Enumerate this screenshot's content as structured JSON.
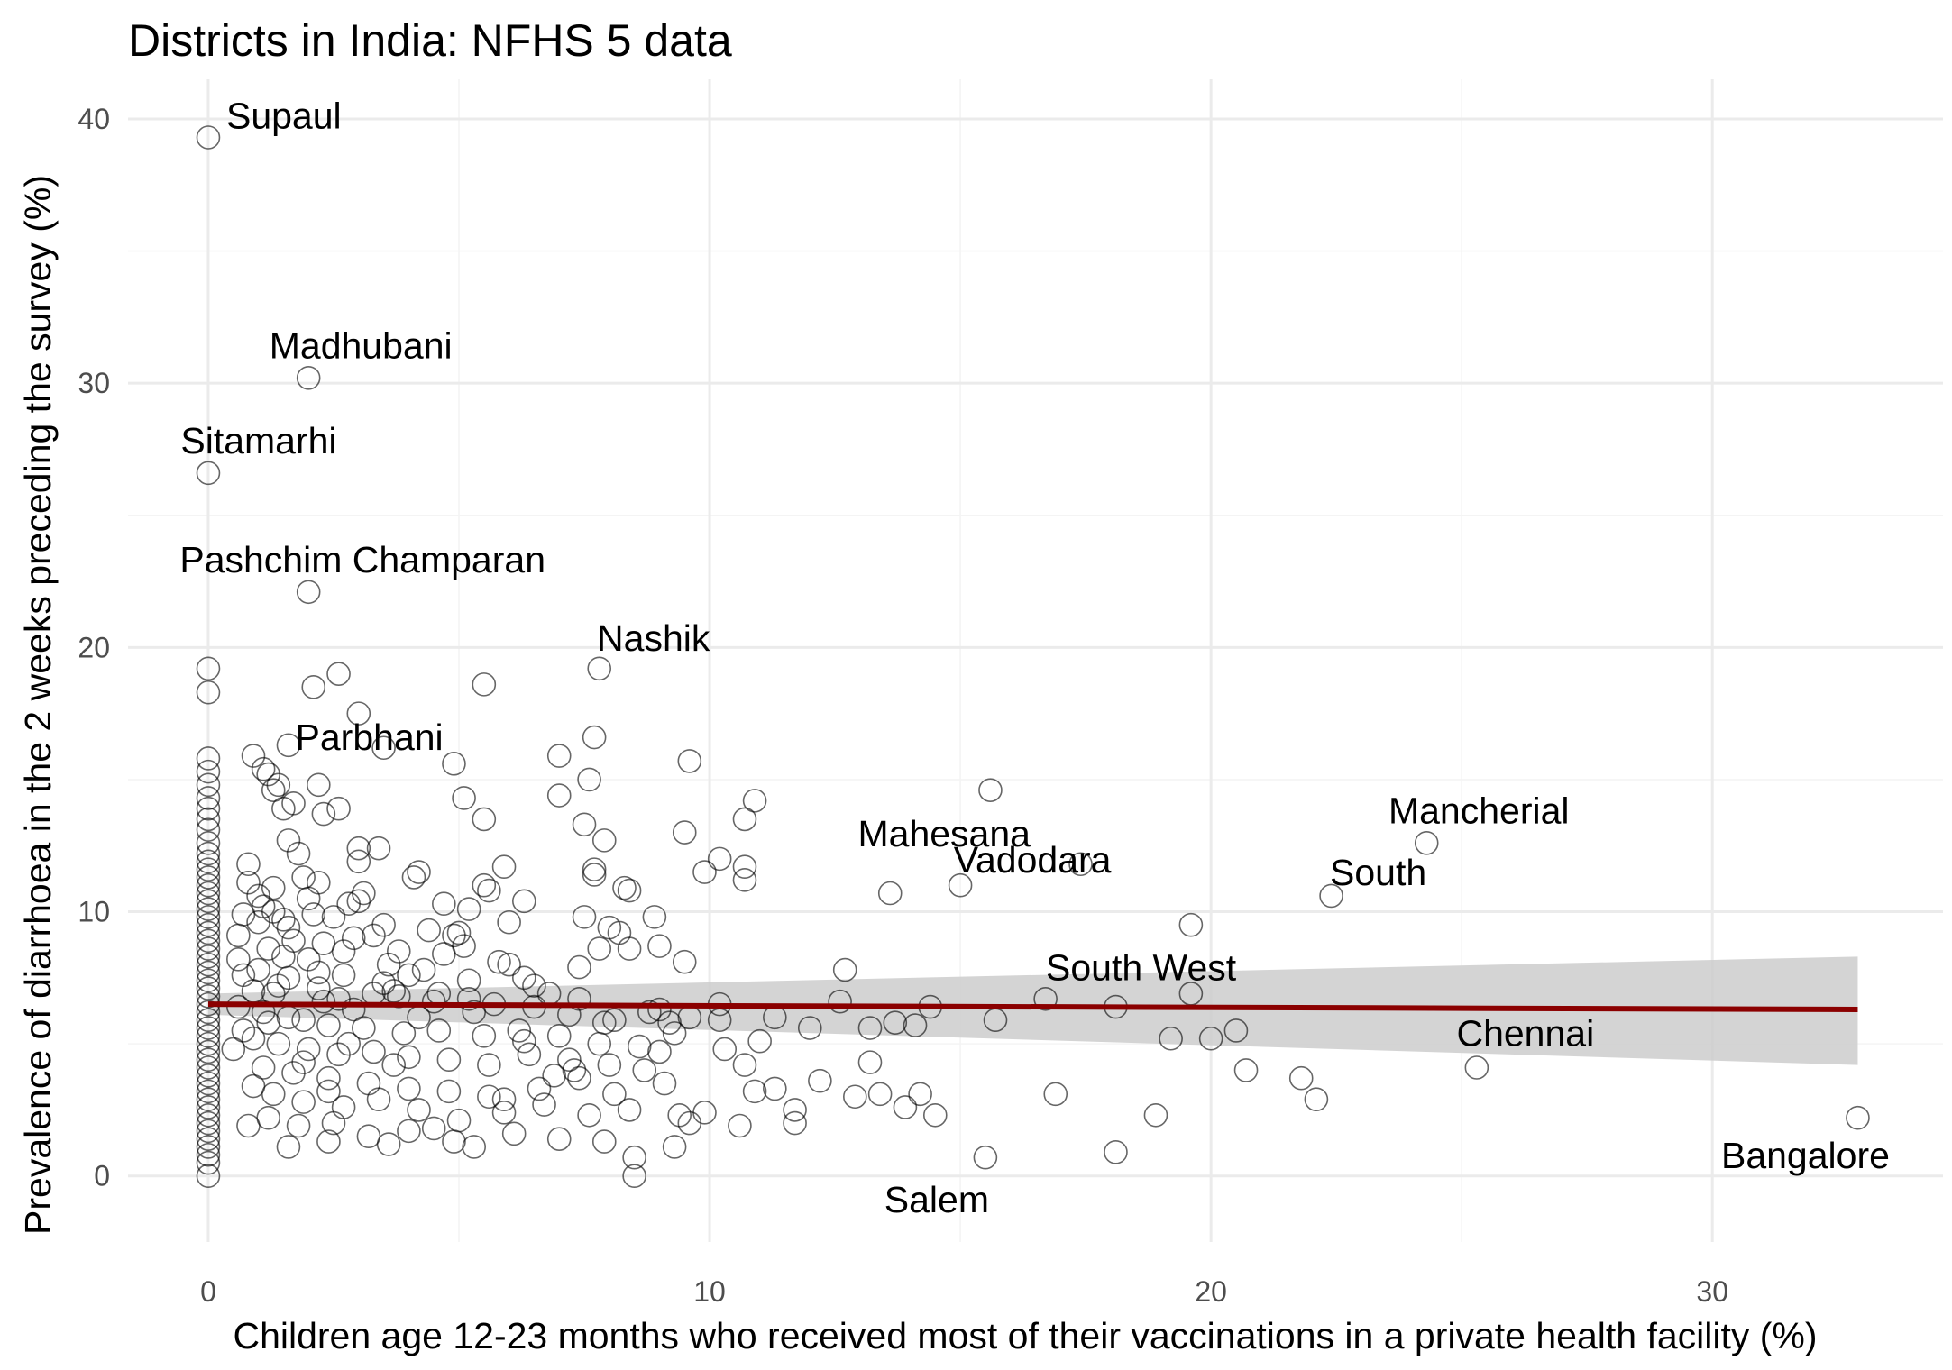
{
  "chart_data": {
    "type": "scatter",
    "title": "Districts in India: NFHS 5 data",
    "xlabel": "Children age 12-23 months who received most of their vaccinations in a private health facility (%)",
    "ylabel": "Prevalence of diarrhoea in the 2 weeks preceding the survey (%)",
    "xlim": [
      -1.6,
      34.6
    ],
    "ylim": [
      -2.5,
      41.5
    ],
    "x_ticks": [
      0,
      10,
      20,
      30
    ],
    "y_ticks": [
      0,
      10,
      20,
      30,
      40
    ],
    "grid": true,
    "colors": {
      "points": "#000000",
      "trend": "#8b0000",
      "band": "#cccccc",
      "grid": "#ebebeb"
    },
    "trend": {
      "x": [
        0,
        32.9
      ],
      "y": [
        6.5,
        6.3
      ],
      "ci_low": [
        6.1,
        4.2
      ],
      "ci_high": [
        6.9,
        8.3
      ]
    },
    "labels": [
      {
        "text": "Supaul",
        "x": 0,
        "y": 39.3
      },
      {
        "text": "Madhubani",
        "x": 2.0,
        "y": 30.2
      },
      {
        "text": "Sitamarhi",
        "x": 0,
        "y": 26.6
      },
      {
        "text": "Pashchim Champaran",
        "x": 2.0,
        "y": 22.1
      },
      {
        "text": "Nashik",
        "x": 7.8,
        "y": 19.2
      },
      {
        "text": "Parbhani",
        "x": 3.5,
        "y": 16.2
      },
      {
        "text": "Mahesana",
        "x": 13.6,
        "y": 10.7
      },
      {
        "text": "Vadodara",
        "x": 15.0,
        "y": 11.0
      },
      {
        "text": "Mancherial",
        "x": 24.3,
        "y": 12.6
      },
      {
        "text": "South",
        "x": 22.4,
        "y": 10.6
      },
      {
        "text": "South West",
        "x": 16.7,
        "y": 6.7
      },
      {
        "text": "Chennai",
        "x": 25.3,
        "y": 4.1
      },
      {
        "text": "Bangalore",
        "x": 32.9,
        "y": 2.2
      },
      {
        "text": "Salem",
        "x": 15.5,
        "y": 0.7
      }
    ],
    "points": [
      [
        0,
        39.3
      ],
      [
        0,
        26.6
      ],
      [
        2.0,
        30.2
      ],
      [
        2.0,
        22.1
      ],
      [
        7.8,
        19.2
      ],
      [
        3.5,
        16.2
      ],
      [
        13.6,
        10.7
      ],
      [
        15.0,
        11.0
      ],
      [
        24.3,
        12.6
      ],
      [
        22.4,
        10.6
      ],
      [
        16.7,
        6.7
      ],
      [
        25.3,
        4.1
      ],
      [
        32.9,
        2.2
      ],
      [
        15.5,
        0.7
      ],
      [
        0,
        19.2
      ],
      [
        0,
        18.3
      ],
      [
        0,
        15.8
      ],
      [
        0,
        15.3
      ],
      [
        0,
        14.8
      ],
      [
        0,
        14.3
      ],
      [
        0,
        13.9
      ],
      [
        0,
        13.5
      ],
      [
        0,
        13.1
      ],
      [
        0,
        12.6
      ],
      [
        0,
        12.2
      ],
      [
        0,
        11.9
      ],
      [
        0,
        11.6
      ],
      [
        0,
        11.3
      ],
      [
        0,
        11.0
      ],
      [
        0,
        10.7
      ],
      [
        0,
        10.4
      ],
      [
        0,
        10.1
      ],
      [
        0,
        9.8
      ],
      [
        0,
        9.5
      ],
      [
        0,
        9.2
      ],
      [
        0,
        8.9
      ],
      [
        0,
        8.6
      ],
      [
        0,
        8.3
      ],
      [
        0,
        8.0
      ],
      [
        0,
        7.7
      ],
      [
        0,
        7.4
      ],
      [
        0,
        7.1
      ],
      [
        0,
        6.8
      ],
      [
        0,
        6.5
      ],
      [
        0,
        6.2
      ],
      [
        0,
        5.9
      ],
      [
        0,
        5.6
      ],
      [
        0,
        5.3
      ],
      [
        0,
        5.0
      ],
      [
        0,
        4.7
      ],
      [
        0,
        4.4
      ],
      [
        0,
        4.1
      ],
      [
        0,
        3.8
      ],
      [
        0,
        3.5
      ],
      [
        0,
        3.2
      ],
      [
        0,
        2.9
      ],
      [
        0,
        2.6
      ],
      [
        0,
        2.3
      ],
      [
        0,
        2.0
      ],
      [
        0,
        1.7
      ],
      [
        0,
        1.4
      ],
      [
        0,
        1.1
      ],
      [
        0,
        0.8
      ],
      [
        0,
        0.5
      ],
      [
        0,
        0.0
      ],
      [
        2.1,
        18.5
      ],
      [
        2.6,
        19.0
      ],
      [
        5.5,
        18.6
      ],
      [
        3.0,
        17.5
      ],
      [
        7.7,
        16.6
      ],
      [
        1.6,
        16.3
      ],
      [
        0.9,
        15.9
      ],
      [
        7.0,
        15.9
      ],
      [
        9.6,
        15.7
      ],
      [
        4.9,
        15.6
      ],
      [
        1.1,
        15.4
      ],
      [
        1.2,
        15.2
      ],
      [
        7.6,
        15.0
      ],
      [
        1.4,
        14.8
      ],
      [
        2.2,
        14.8
      ],
      [
        1.3,
        14.6
      ],
      [
        7.0,
        14.4
      ],
      [
        5.1,
        14.3
      ],
      [
        10.9,
        14.2
      ],
      [
        1.7,
        14.1
      ],
      [
        1.5,
        13.9
      ],
      [
        2.6,
        13.9
      ],
      [
        2.3,
        13.7
      ],
      [
        10.7,
        13.5
      ],
      [
        5.5,
        13.5
      ],
      [
        7.5,
        13.3
      ],
      [
        9.5,
        13.0
      ],
      [
        1.6,
        12.7
      ],
      [
        7.9,
        12.7
      ],
      [
        3.0,
        12.4
      ],
      [
        3.4,
        12.4
      ],
      [
        1.8,
        12.2
      ],
      [
        3.0,
        11.9
      ],
      [
        10.2,
        12.0
      ],
      [
        0.8,
        11.8
      ],
      [
        15.6,
        14.6
      ],
      [
        17.4,
        11.8
      ],
      [
        10.7,
        11.7
      ],
      [
        7.7,
        11.6
      ],
      [
        5.9,
        11.7
      ],
      [
        4.2,
        11.5
      ],
      [
        7.7,
        11.4
      ],
      [
        4.1,
        11.3
      ],
      [
        9.9,
        11.5
      ],
      [
        10.7,
        11.2
      ],
      [
        5.5,
        11.0
      ],
      [
        2.2,
        11.1
      ],
      [
        1.3,
        10.9
      ],
      [
        8.3,
        10.9
      ],
      [
        1.0,
        10.6
      ],
      [
        8.4,
        10.8
      ],
      [
        5.6,
        10.8
      ],
      [
        6.3,
        10.4
      ],
      [
        4.7,
        10.3
      ],
      [
        2.8,
        10.3
      ],
      [
        5.2,
        10.1
      ],
      [
        1.3,
        10.0
      ],
      [
        2.1,
        9.9
      ],
      [
        3.0,
        10.4
      ],
      [
        0.7,
        9.9
      ],
      [
        1.0,
        9.6
      ],
      [
        1.6,
        9.4
      ],
      [
        3.5,
        9.5
      ],
      [
        4.4,
        9.3
      ],
      [
        5.0,
        9.2
      ],
      [
        6.0,
        9.6
      ],
      [
        7.5,
        9.8
      ],
      [
        8.0,
        9.4
      ],
      [
        8.9,
        9.8
      ],
      [
        2.3,
        8.8
      ],
      [
        1.7,
        8.9
      ],
      [
        0.6,
        9.1
      ],
      [
        1.2,
        8.6
      ],
      [
        1.5,
        8.3
      ],
      [
        2.0,
        8.2
      ],
      [
        3.8,
        8.5
      ],
      [
        4.7,
        8.4
      ],
      [
        5.1,
        8.7
      ],
      [
        5.8,
        8.1
      ],
      [
        7.8,
        8.6
      ],
      [
        8.4,
        8.6
      ],
      [
        8.2,
        9.2
      ],
      [
        9.0,
        8.7
      ],
      [
        9.5,
        8.1
      ],
      [
        12.7,
        7.8
      ],
      [
        1.0,
        7.8
      ],
      [
        1.6,
        7.5
      ],
      [
        2.7,
        7.6
      ],
      [
        3.5,
        7.3
      ],
      [
        4.0,
        7.6
      ],
      [
        5.2,
        7.4
      ],
      [
        6.3,
        7.5
      ],
      [
        7.4,
        7.9
      ],
      [
        2.2,
        7.1
      ],
      [
        0.9,
        7.0
      ],
      [
        1.3,
        6.9
      ],
      [
        2.6,
        6.7
      ],
      [
        3.8,
        6.8
      ],
      [
        4.5,
        6.6
      ],
      [
        5.3,
        6.2
      ],
      [
        6.5,
        6.4
      ],
      [
        7.2,
        6.1
      ],
      [
        8.1,
        5.9
      ],
      [
        9.0,
        6.3
      ],
      [
        9.6,
        6.0
      ],
      [
        12.6,
        6.6
      ],
      [
        19.6,
        6.9
      ],
      [
        18.1,
        6.4
      ],
      [
        15.7,
        5.9
      ],
      [
        13.2,
        5.6
      ],
      [
        13.7,
        5.8
      ],
      [
        14.1,
        5.7
      ],
      [
        14.4,
        6.4
      ],
      [
        0.6,
        6.4
      ],
      [
        1.1,
        6.2
      ],
      [
        1.9,
        5.9
      ],
      [
        2.4,
        5.7
      ],
      [
        3.1,
        5.6
      ],
      [
        3.9,
        5.4
      ],
      [
        4.6,
        5.5
      ],
      [
        5.5,
        5.3
      ],
      [
        6.3,
        5.1
      ],
      [
        7.0,
        5.3
      ],
      [
        7.8,
        5.0
      ],
      [
        8.6,
        4.9
      ],
      [
        9.2,
        5.8
      ],
      [
        10.2,
        5.9
      ],
      [
        11.0,
        5.1
      ],
      [
        12.0,
        5.6
      ],
      [
        0.9,
        5.2
      ],
      [
        1.4,
        5.0
      ],
      [
        2.0,
        4.8
      ],
      [
        2.6,
        4.6
      ],
      [
        3.3,
        4.7
      ],
      [
        4.0,
        4.5
      ],
      [
        4.8,
        4.4
      ],
      [
        5.6,
        4.2
      ],
      [
        6.4,
        4.6
      ],
      [
        7.2,
        4.4
      ],
      [
        8.0,
        4.2
      ],
      [
        8.7,
        4.0
      ],
      [
        10.3,
        4.8
      ],
      [
        10.7,
        4.2
      ],
      [
        13.2,
        4.3
      ],
      [
        19.2,
        5.2
      ],
      [
        20.0,
        5.2
      ],
      [
        20.5,
        5.5
      ],
      [
        1.1,
        4.1
      ],
      [
        1.7,
        3.9
      ],
      [
        2.4,
        3.7
      ],
      [
        3.2,
        3.5
      ],
      [
        4.0,
        3.3
      ],
      [
        4.8,
        3.2
      ],
      [
        5.6,
        3.0
      ],
      [
        6.6,
        3.3
      ],
      [
        7.4,
        3.7
      ],
      [
        8.1,
        3.1
      ],
      [
        9.1,
        3.5
      ],
      [
        10.9,
        3.2
      ],
      [
        11.3,
        3.3
      ],
      [
        12.2,
        3.6
      ],
      [
        13.9,
        2.6
      ],
      [
        14.2,
        3.1
      ],
      [
        16.9,
        3.1
      ],
      [
        20.7,
        4.0
      ],
      [
        21.8,
        3.7
      ],
      [
        22.1,
        2.9
      ],
      [
        0.9,
        3.4
      ],
      [
        1.3,
        3.1
      ],
      [
        1.9,
        2.8
      ],
      [
        2.7,
        2.6
      ],
      [
        3.4,
        2.9
      ],
      [
        4.2,
        2.5
      ],
      [
        5.0,
        2.1
      ],
      [
        5.9,
        2.4
      ],
      [
        6.7,
        2.7
      ],
      [
        7.6,
        2.3
      ],
      [
        8.4,
        2.5
      ],
      [
        9.4,
        2.3
      ],
      [
        9.9,
        2.4
      ],
      [
        11.7,
        2.5
      ],
      [
        12.9,
        3.0
      ],
      [
        13.4,
        3.1
      ],
      [
        14.5,
        2.3
      ],
      [
        18.9,
        2.3
      ],
      [
        1.2,
        2.2
      ],
      [
        1.8,
        1.9
      ],
      [
        2.5,
        2.0
      ],
      [
        3.2,
        1.5
      ],
      [
        4.0,
        1.7
      ],
      [
        4.9,
        1.3
      ],
      [
        5.3,
        1.1
      ],
      [
        6.1,
        1.6
      ],
      [
        7.0,
        1.4
      ],
      [
        7.9,
        1.3
      ],
      [
        8.5,
        0.7
      ],
      [
        9.3,
        1.1
      ],
      [
        10.6,
        1.9
      ],
      [
        11.7,
        2.0
      ],
      [
        8.5,
        0.0
      ],
      [
        18.1,
        0.9
      ],
      [
        2.4,
        1.3
      ],
      [
        1.6,
        1.1
      ],
      [
        0.8,
        1.9
      ],
      [
        3.6,
        1.2
      ],
      [
        4.5,
        1.8
      ],
      [
        5.9,
        2.9
      ],
      [
        9.6,
        2.0
      ],
      [
        6.5,
        7.2
      ],
      [
        6.0,
        8.0
      ],
      [
        3.3,
        9.1
      ],
      [
        2.9,
        9.0
      ],
      [
        4.6,
        6.9
      ],
      [
        5.2,
        6.7
      ],
      [
        0.7,
        5.5
      ],
      [
        2.8,
        5.0
      ],
      [
        3.7,
        4.2
      ],
      [
        1.9,
        4.3
      ],
      [
        2.4,
        3.2
      ],
      [
        0.5,
        4.8
      ],
      [
        1.6,
        6.0
      ],
      [
        2.9,
        6.3
      ],
      [
        4.2,
        6.0
      ],
      [
        3.7,
        7.0
      ],
      [
        1.2,
        5.8
      ],
      [
        0.7,
        7.6
      ],
      [
        6.9,
        3.8
      ],
      [
        9.0,
        4.7
      ],
      [
        19.6,
        9.5
      ],
      [
        7.3,
        4.0
      ],
      [
        7.9,
        5.8
      ],
      [
        6.2,
        5.5
      ],
      [
        2.2,
        7.7
      ],
      [
        1.5,
        9.7
      ],
      [
        2.5,
        9.8
      ],
      [
        2.0,
        10.5
      ],
      [
        3.1,
        10.7
      ],
      [
        0.8,
        11.1
      ],
      [
        1.9,
        11.3
      ],
      [
        1.1,
        10.2
      ],
      [
        2.7,
        8.5
      ],
      [
        3.6,
        8.0
      ],
      [
        4.9,
        9.1
      ],
      [
        0.6,
        8.2
      ],
      [
        1.4,
        7.2
      ],
      [
        2.3,
        6.6
      ],
      [
        3.3,
        6.9
      ],
      [
        4.3,
        7.8
      ],
      [
        5.7,
        6.5
      ],
      [
        6.8,
        6.9
      ],
      [
        7.4,
        6.7
      ],
      [
        8.8,
        6.2
      ],
      [
        9.3,
        5.4
      ],
      [
        10.2,
        6.5
      ],
      [
        11.3,
        6.0
      ]
    ]
  }
}
